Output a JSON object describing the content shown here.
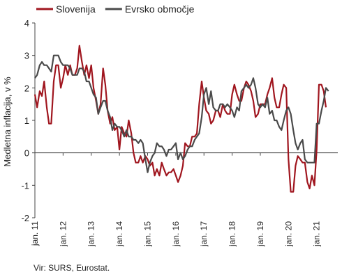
{
  "chart_data": {
    "type": "line",
    "title": "",
    "ylabel": "Medletna inflacija, v %",
    "xlabel": "",
    "ylim": [
      -2,
      4
    ],
    "yticks": [
      -2,
      -1,
      0,
      1,
      2,
      3,
      4
    ],
    "xlim": [
      2011.0,
      2021.75
    ],
    "xticks": [
      {
        "x": 2011,
        "label": "jan. 11"
      },
      {
        "x": 2012,
        "label": "jan. 12"
      },
      {
        "x": 2013,
        "label": "jan. 13"
      },
      {
        "x": 2014,
        "label": "jan. 14"
      },
      {
        "x": 2015,
        "label": "jan. 15"
      },
      {
        "x": 2016,
        "label": "jan. 16"
      },
      {
        "x": 2017,
        "label": "jan. 17"
      },
      {
        "x": 2018,
        "label": "jan. 18"
      },
      {
        "x": 2019,
        "label": "jan. 19"
      },
      {
        "x": 2020,
        "label": "jan. 20"
      },
      {
        "x": 2021,
        "label": "jan. 21"
      }
    ],
    "grid": false,
    "legend_position": "top-left",
    "series": [
      {
        "name": "Slovenija",
        "color": "#a0161f",
        "points": [
          [
            2011.0,
            1.8
          ],
          [
            2011.08,
            1.4
          ],
          [
            2011.17,
            1.9
          ],
          [
            2011.25,
            1.75
          ],
          [
            2011.33,
            2.2
          ],
          [
            2011.42,
            1.4
          ],
          [
            2011.5,
            0.9
          ],
          [
            2011.58,
            0.9
          ],
          [
            2011.67,
            2.2
          ],
          [
            2011.75,
            2.7
          ],
          [
            2011.83,
            2.7
          ],
          [
            2011.92,
            2.0
          ],
          [
            2012.0,
            2.3
          ],
          [
            2012.08,
            2.7
          ],
          [
            2012.17,
            2.4
          ],
          [
            2012.25,
            2.7
          ],
          [
            2012.33,
            2.4
          ],
          [
            2012.42,
            2.4
          ],
          [
            2012.5,
            2.6
          ],
          [
            2012.58,
            3.3
          ],
          [
            2012.67,
            2.8
          ],
          [
            2012.75,
            2.4
          ],
          [
            2012.83,
            2.7
          ],
          [
            2012.92,
            2.3
          ],
          [
            2013.0,
            2.7
          ],
          [
            2013.08,
            2.0
          ],
          [
            2013.17,
            1.6
          ],
          [
            2013.25,
            1.2
          ],
          [
            2013.33,
            1.5
          ],
          [
            2013.42,
            2.6
          ],
          [
            2013.5,
            2.1
          ],
          [
            2013.58,
            1.3
          ],
          [
            2013.67,
            0.9
          ],
          [
            2013.75,
            1.1
          ],
          [
            2013.83,
            0.7
          ],
          [
            2013.92,
            0.8
          ],
          [
            2014.0,
            0.1
          ],
          [
            2014.08,
            0.8
          ],
          [
            2014.17,
            0.6
          ],
          [
            2014.25,
            0.5
          ],
          [
            2014.33,
            1.0
          ],
          [
            2014.42,
            0.6
          ],
          [
            2014.5,
            0.0
          ],
          [
            2014.58,
            -0.3
          ],
          [
            2014.67,
            -0.3
          ],
          [
            2014.75,
            -0.1
          ],
          [
            2014.83,
            -0.3
          ],
          [
            2014.92,
            -0.1
          ],
          [
            2015.0,
            -0.2
          ],
          [
            2015.08,
            -0.4
          ],
          [
            2015.17,
            -0.3
          ],
          [
            2015.25,
            -0.7
          ],
          [
            2015.33,
            -0.5
          ],
          [
            2015.42,
            -0.7
          ],
          [
            2015.5,
            -0.3
          ],
          [
            2015.58,
            -0.5
          ],
          [
            2015.67,
            -0.7
          ],
          [
            2015.75,
            -0.6
          ],
          [
            2015.83,
            -0.6
          ],
          [
            2015.92,
            -0.5
          ],
          [
            2016.0,
            -0.7
          ],
          [
            2016.08,
            -0.9
          ],
          [
            2016.17,
            -0.7
          ],
          [
            2016.25,
            -0.4
          ],
          [
            2016.33,
            0.3
          ],
          [
            2016.42,
            0.2
          ],
          [
            2016.5,
            0.2
          ],
          [
            2016.58,
            0.5
          ],
          [
            2016.67,
            0.5
          ],
          [
            2016.75,
            0.6
          ],
          [
            2016.83,
            1.5
          ],
          [
            2016.92,
            2.2
          ],
          [
            2017.0,
            1.7
          ],
          [
            2017.08,
            1.3
          ],
          [
            2017.17,
            1.2
          ],
          [
            2017.25,
            0.9
          ],
          [
            2017.33,
            1.0
          ],
          [
            2017.42,
            1.3
          ],
          [
            2017.5,
            1.3
          ],
          [
            2017.58,
            1.1
          ],
          [
            2017.67,
            1.5
          ],
          [
            2017.75,
            1.3
          ],
          [
            2017.83,
            1.2
          ],
          [
            2017.92,
            1.2
          ],
          [
            2018.0,
            1.8
          ],
          [
            2018.08,
            2.1
          ],
          [
            2018.17,
            1.8
          ],
          [
            2018.25,
            1.6
          ],
          [
            2018.33,
            1.6
          ],
          [
            2018.42,
            2.0
          ],
          [
            2018.5,
            2.2
          ],
          [
            2018.58,
            2.1
          ],
          [
            2018.67,
            1.9
          ],
          [
            2018.75,
            1.6
          ],
          [
            2018.83,
            1.1
          ],
          [
            2018.92,
            1.2
          ],
          [
            2019.0,
            1.5
          ],
          [
            2019.08,
            1.5
          ],
          [
            2019.17,
            1.5
          ],
          [
            2019.25,
            1.8
          ],
          [
            2019.33,
            2.0
          ],
          [
            2019.42,
            2.3
          ],
          [
            2019.5,
            1.7
          ],
          [
            2019.58,
            1.4
          ],
          [
            2019.67,
            1.4
          ],
          [
            2019.75,
            1.8
          ],
          [
            2019.83,
            2.1
          ],
          [
            2019.92,
            2.0
          ],
          [
            2020.0,
            -0.2
          ],
          [
            2020.08,
            -1.2
          ],
          [
            2020.17,
            -1.2
          ],
          [
            2020.25,
            -0.4
          ],
          [
            2020.33,
            -0.1
          ],
          [
            2020.42,
            -0.2
          ],
          [
            2020.5,
            -0.3
          ],
          [
            2020.58,
            -0.3
          ],
          [
            2020.67,
            -0.9
          ],
          [
            2020.75,
            -1.1
          ],
          [
            2020.83,
            -0.7
          ],
          [
            2020.92,
            -1.0
          ],
          [
            2021.0,
            0.1
          ],
          [
            2021.08,
            2.1
          ],
          [
            2021.17,
            2.1
          ],
          [
            2021.25,
            1.9
          ],
          [
            2021.33,
            1.4
          ]
        ]
      },
      {
        "name": "Evrsko območje",
        "color": "#4a4a4a",
        "points": [
          [
            2011.0,
            2.3
          ],
          [
            2011.08,
            2.4
          ],
          [
            2011.17,
            2.7
          ],
          [
            2011.25,
            2.8
          ],
          [
            2011.33,
            2.7
          ],
          [
            2011.42,
            2.7
          ],
          [
            2011.5,
            2.6
          ],
          [
            2011.58,
            2.5
          ],
          [
            2011.67,
            3.0
          ],
          [
            2011.75,
            3.0
          ],
          [
            2011.83,
            3.0
          ],
          [
            2011.92,
            2.8
          ],
          [
            2012.0,
            2.7
          ],
          [
            2012.08,
            2.7
          ],
          [
            2012.17,
            2.7
          ],
          [
            2012.25,
            2.6
          ],
          [
            2012.33,
            2.4
          ],
          [
            2012.42,
            2.4
          ],
          [
            2012.5,
            2.4
          ],
          [
            2012.58,
            2.6
          ],
          [
            2012.67,
            2.6
          ],
          [
            2012.75,
            2.5
          ],
          [
            2012.83,
            2.2
          ],
          [
            2012.92,
            2.2
          ],
          [
            2013.0,
            2.0
          ],
          [
            2013.08,
            1.8
          ],
          [
            2013.17,
            1.7
          ],
          [
            2013.25,
            1.2
          ],
          [
            2013.33,
            1.4
          ],
          [
            2013.42,
            1.6
          ],
          [
            2013.5,
            1.6
          ],
          [
            2013.58,
            1.3
          ],
          [
            2013.67,
            1.1
          ],
          [
            2013.75,
            0.7
          ],
          [
            2013.83,
            0.9
          ],
          [
            2013.92,
            0.8
          ],
          [
            2014.0,
            0.8
          ],
          [
            2014.08,
            0.7
          ],
          [
            2014.17,
            0.5
          ],
          [
            2014.25,
            0.7
          ],
          [
            2014.33,
            0.5
          ],
          [
            2014.42,
            0.5
          ],
          [
            2014.5,
            0.4
          ],
          [
            2014.58,
            0.4
          ],
          [
            2014.67,
            0.3
          ],
          [
            2014.75,
            0.4
          ],
          [
            2014.83,
            0.3
          ],
          [
            2014.92,
            -0.2
          ],
          [
            2015.0,
            -0.6
          ],
          [
            2015.08,
            -0.3
          ],
          [
            2015.17,
            -0.1
          ],
          [
            2015.25,
            0.0
          ],
          [
            2015.33,
            0.3
          ],
          [
            2015.42,
            0.2
          ],
          [
            2015.5,
            0.2
          ],
          [
            2015.58,
            0.1
          ],
          [
            2015.67,
            -0.1
          ],
          [
            2015.75,
            0.1
          ],
          [
            2015.83,
            0.1
          ],
          [
            2015.92,
            0.2
          ],
          [
            2016.0,
            0.3
          ],
          [
            2016.08,
            -0.2
          ],
          [
            2016.17,
            0.0
          ],
          [
            2016.25,
            -0.2
          ],
          [
            2016.33,
            -0.1
          ],
          [
            2016.42,
            0.1
          ],
          [
            2016.5,
            0.2
          ],
          [
            2016.58,
            0.2
          ],
          [
            2016.67,
            0.4
          ],
          [
            2016.75,
            0.5
          ],
          [
            2016.83,
            0.6
          ],
          [
            2016.92,
            1.1
          ],
          [
            2017.0,
            1.8
          ],
          [
            2017.08,
            2.0
          ],
          [
            2017.17,
            1.5
          ],
          [
            2017.25,
            1.9
          ],
          [
            2017.33,
            1.4
          ],
          [
            2017.42,
            1.3
          ],
          [
            2017.5,
            1.3
          ],
          [
            2017.58,
            1.5
          ],
          [
            2017.67,
            1.5
          ],
          [
            2017.75,
            1.4
          ],
          [
            2017.83,
            1.5
          ],
          [
            2017.92,
            1.4
          ],
          [
            2018.0,
            1.3
          ],
          [
            2018.08,
            1.1
          ],
          [
            2018.17,
            1.4
          ],
          [
            2018.25,
            1.3
          ],
          [
            2018.33,
            1.9
          ],
          [
            2018.42,
            2.0
          ],
          [
            2018.5,
            2.1
          ],
          [
            2018.58,
            2.0
          ],
          [
            2018.67,
            2.1
          ],
          [
            2018.75,
            2.3
          ],
          [
            2018.83,
            2.0
          ],
          [
            2018.92,
            1.5
          ],
          [
            2019.0,
            1.4
          ],
          [
            2019.08,
            1.5
          ],
          [
            2019.17,
            1.4
          ],
          [
            2019.25,
            1.7
          ],
          [
            2019.33,
            1.2
          ],
          [
            2019.42,
            1.3
          ],
          [
            2019.5,
            1.0
          ],
          [
            2019.58,
            1.0
          ],
          [
            2019.67,
            0.8
          ],
          [
            2019.75,
            0.7
          ],
          [
            2019.83,
            1.0
          ],
          [
            2019.92,
            1.3
          ],
          [
            2020.0,
            1.4
          ],
          [
            2020.08,
            1.2
          ],
          [
            2020.17,
            0.7
          ],
          [
            2020.25,
            0.3
          ],
          [
            2020.33,
            0.1
          ],
          [
            2020.42,
            0.3
          ],
          [
            2020.5,
            0.4
          ],
          [
            2020.58,
            -0.2
          ],
          [
            2020.67,
            -0.3
          ],
          [
            2020.75,
            -0.3
          ],
          [
            2020.83,
            -0.3
          ],
          [
            2020.92,
            -0.3
          ],
          [
            2021.0,
            0.9
          ],
          [
            2021.08,
            0.9
          ],
          [
            2021.17,
            1.3
          ],
          [
            2021.25,
            1.6
          ],
          [
            2021.33,
            2.0
          ],
          [
            2021.42,
            1.9
          ]
        ]
      }
    ]
  },
  "source_note": "Vir: SURS, Eurostat."
}
